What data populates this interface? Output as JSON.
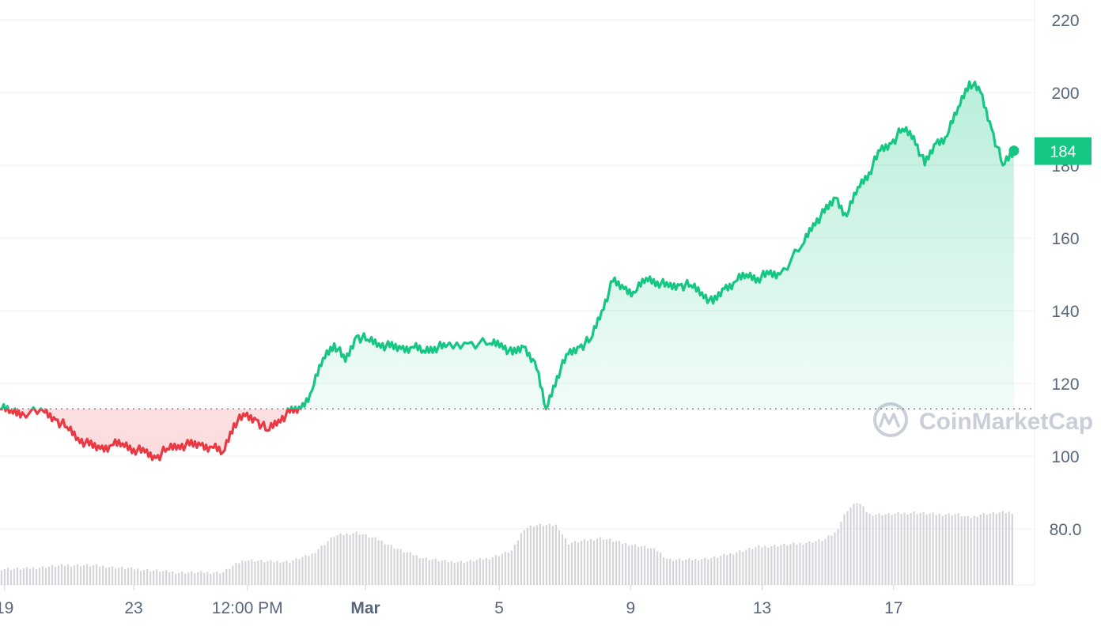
{
  "watermark": {
    "text": "CoinMarketCap"
  },
  "price_tag": {
    "text": "184"
  },
  "colors": {
    "up": "#16c784",
    "down": "#ea3943",
    "grid": "#eef0f3",
    "axis_text": "#58667e",
    "volume": "#c4c7ce",
    "baseline": "#7d8392",
    "watermark": "#c9ced8",
    "tag_bg": "#16c784",
    "tag_text": "#ffffff"
  },
  "chart_data": {
    "type": "line",
    "title": "",
    "xlabel": "",
    "ylabel": "",
    "y_ticks": [
      "220",
      "200",
      "180",
      "160",
      "140",
      "120",
      "100",
      "80.0"
    ],
    "x_ticks": [
      "19",
      "23",
      "12:00 PM",
      "Mar",
      "5",
      "9",
      "13",
      "17"
    ],
    "ylim": [
      66,
      224
    ],
    "baseline_value": 113,
    "last_value": 184,
    "grid": true,
    "price_series": {
      "name": "",
      "points": [
        [
          0,
          113
        ],
        [
          0.5,
          112.5
        ],
        [
          1,
          112
        ],
        [
          2,
          112
        ],
        [
          2.5,
          110
        ],
        [
          3,
          108
        ],
        [
          3.5,
          105
        ],
        [
          4,
          103
        ],
        [
          4.5,
          102
        ],
        [
          5,
          103
        ],
        [
          5.5,
          103.5
        ],
        [
          6,
          102
        ],
        [
          6.5,
          101
        ],
        [
          7,
          99.5
        ],
        [
          7.5,
          102
        ],
        [
          8,
          103
        ],
        [
          8.5,
          103
        ],
        [
          9,
          103
        ],
        [
          9.5,
          102.5
        ],
        [
          10,
          101
        ],
        [
          10.5,
          109
        ],
        [
          11,
          111
        ],
        [
          11.5,
          110
        ],
        [
          12,
          107
        ],
        [
          12.5,
          110
        ],
        [
          13,
          112
        ],
        [
          13.5,
          113
        ],
        [
          14,
          118
        ],
        [
          14.5,
          127
        ],
        [
          15,
          131
        ],
        [
          15.5,
          126
        ],
        [
          16,
          133
        ],
        [
          16.5,
          132
        ],
        [
          17,
          131
        ],
        [
          17.5,
          130
        ],
        [
          18,
          129.5
        ],
        [
          18.5,
          130
        ],
        [
          19,
          129
        ],
        [
          19.5,
          130
        ],
        [
          20,
          130
        ],
        [
          21,
          131
        ],
        [
          22,
          131
        ],
        [
          22.5,
          131
        ],
        [
          23,
          128
        ],
        [
          23.5,
          130
        ],
        [
          24,
          126
        ],
        [
          24.5,
          113
        ],
        [
          25,
          122
        ],
        [
          25.5,
          128
        ],
        [
          26,
          130
        ],
        [
          26.5,
          132
        ],
        [
          27,
          140
        ],
        [
          27.5,
          148
        ],
        [
          28,
          146
        ],
        [
          28.5,
          145
        ],
        [
          29,
          149
        ],
        [
          29.5,
          148
        ],
        [
          30,
          146.5
        ],
        [
          30.5,
          147
        ],
        [
          31,
          147
        ],
        [
          31.5,
          145
        ],
        [
          32,
          142
        ],
        [
          32.5,
          146
        ],
        [
          33,
          148
        ],
        [
          33.5,
          150
        ],
        [
          34,
          149
        ],
        [
          34.5,
          150
        ],
        [
          35,
          150
        ],
        [
          36,
          158
        ],
        [
          36.5,
          164
        ],
        [
          37,
          167
        ],
        [
          37.5,
          171
        ],
        [
          38,
          166
        ],
        [
          38.5,
          174
        ],
        [
          39,
          178
        ],
        [
          39.5,
          184
        ],
        [
          40,
          186
        ],
        [
          40.5,
          190
        ],
        [
          41,
          188
        ],
        [
          41.5,
          180
        ],
        [
          42,
          186
        ],
        [
          42.5,
          188
        ],
        [
          43,
          196
        ],
        [
          43.5,
          203
        ],
        [
          44,
          200
        ],
        [
          44.5,
          190
        ],
        [
          45,
          180
        ],
        [
          45.5,
          184
        ]
      ]
    },
    "volume_series": {
      "name": "",
      "points": [
        [
          0,
          69
        ],
        [
          1,
          69
        ],
        [
          2,
          69.5
        ],
        [
          3,
          70
        ],
        [
          4,
          70
        ],
        [
          5,
          69.5
        ],
        [
          6,
          69
        ],
        [
          7,
          68.5
        ],
        [
          8,
          68
        ],
        [
          9,
          68
        ],
        [
          10,
          68
        ],
        [
          10.5,
          70
        ],
        [
          11,
          71.5
        ],
        [
          12,
          71
        ],
        [
          13,
          71
        ],
        [
          14,
          73
        ],
        [
          15,
          78
        ],
        [
          16,
          79
        ],
        [
          17,
          77
        ],
        [
          18,
          74
        ],
        [
          19,
          72
        ],
        [
          20,
          71
        ],
        [
          21,
          71
        ],
        [
          22,
          72
        ],
        [
          22.5,
          73
        ],
        [
          23,
          74
        ],
        [
          23.5,
          80
        ],
        [
          24,
          81
        ],
        [
          25,
          81
        ],
        [
          25.5,
          76
        ],
        [
          26,
          76.5
        ],
        [
          27,
          77.5
        ],
        [
          28,
          76
        ],
        [
          29,
          75
        ],
        [
          29.5,
          74
        ],
        [
          30,
          71.5
        ],
        [
          31,
          71.5
        ],
        [
          32,
          72
        ],
        [
          33,
          73.5
        ],
        [
          34,
          75
        ],
        [
          35,
          75.5
        ],
        [
          36,
          76
        ],
        [
          37,
          77
        ],
        [
          37.5,
          79
        ],
        [
          38,
          85
        ],
        [
          38.5,
          87.5
        ],
        [
          39,
          84
        ],
        [
          40,
          84
        ],
        [
          41,
          84.5
        ],
        [
          42,
          84
        ],
        [
          43,
          84
        ],
        [
          43.5,
          83
        ],
        [
          44,
          84
        ],
        [
          45,
          84.5
        ],
        [
          45.5,
          84.5
        ]
      ]
    }
  }
}
